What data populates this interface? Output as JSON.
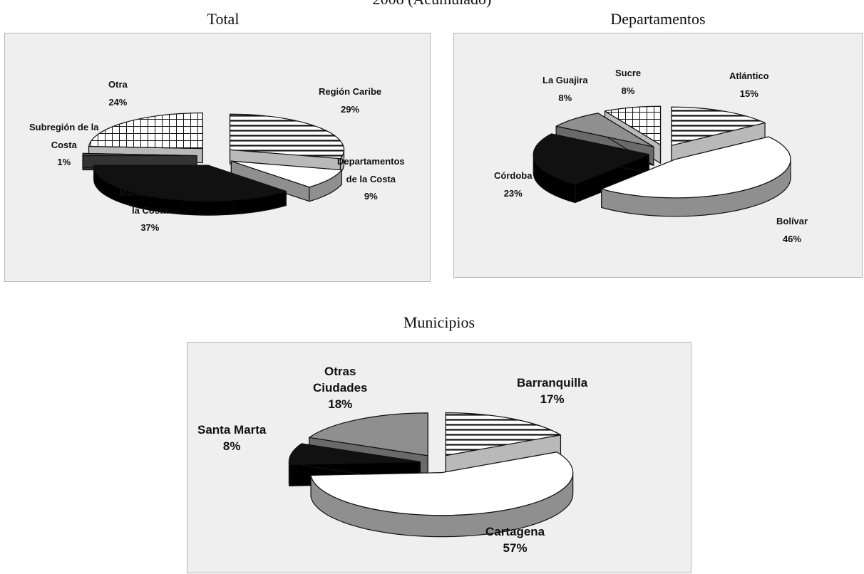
{
  "header": {
    "partial_title": "2008 (Acumulado)"
  },
  "colors": {
    "panel_bg": "#efefef",
    "dark": "#111111",
    "mid_gray": "#8f8f8f",
    "dark_gray": "#4a4a4a",
    "white": "#ffffff"
  },
  "chart_data": [
    {
      "type": "pie",
      "title": "Total",
      "style": "3d-exploded",
      "slices": [
        {
          "name": "Región Caribe",
          "label_lines": [
            "Región Caribe"
          ],
          "value": 29,
          "pct_label": "29%",
          "pattern": "horizontal-stripes"
        },
        {
          "name": "Departamentos de la Costa",
          "label_lines": [
            "Departamentos",
            "de la Costa"
          ],
          "value": 9,
          "pct_label": "9%",
          "pattern": "white"
        },
        {
          "name": "Municipios de la Costa",
          "label_lines": [
            "Municipios de",
            "la Costa"
          ],
          "value": 37,
          "pct_label": "37%",
          "pattern": "black"
        },
        {
          "name": "Subregión de la Costa",
          "label_lines": [
            "Subregión de la",
            "Costa"
          ],
          "value": 1,
          "pct_label": "1%",
          "pattern": "dark-gray"
        },
        {
          "name": "Otra",
          "label_lines": [
            "Otra"
          ],
          "value": 24,
          "pct_label": "24%",
          "pattern": "grid"
        }
      ]
    },
    {
      "type": "pie",
      "title": "Departamentos",
      "style": "3d-exploded",
      "slices": [
        {
          "name": "Atlántico",
          "label_lines": [
            "Atlántico"
          ],
          "value": 15,
          "pct_label": "15%",
          "pattern": "horizontal-stripes"
        },
        {
          "name": "Bolívar",
          "label_lines": [
            "Bolívar"
          ],
          "value": 46,
          "pct_label": "46%",
          "pattern": "white"
        },
        {
          "name": "Córdoba",
          "label_lines": [
            "Córdoba"
          ],
          "value": 23,
          "pct_label": "23%",
          "pattern": "black"
        },
        {
          "name": "La Guajira",
          "label_lines": [
            "La Guajira"
          ],
          "value": 8,
          "pct_label": "8%",
          "pattern": "mid-gray"
        },
        {
          "name": "Sucre",
          "label_lines": [
            "Sucre"
          ],
          "value": 8,
          "pct_label": "8%",
          "pattern": "grid"
        }
      ]
    },
    {
      "type": "pie",
      "title": "Municipios",
      "style": "3d-exploded",
      "slices": [
        {
          "name": "Barranquilla",
          "label_lines": [
            "Barranquilla"
          ],
          "value": 17,
          "pct_label": "17%",
          "pattern": "horizontal-stripes"
        },
        {
          "name": "Cartagena",
          "label_lines": [
            "Cartagena"
          ],
          "value": 57,
          "pct_label": "57%",
          "pattern": "white"
        },
        {
          "name": "Santa Marta",
          "label_lines": [
            "Santa Marta"
          ],
          "value": 8,
          "pct_label": "8%",
          "pattern": "black"
        },
        {
          "name": "Otras Ciudades",
          "label_lines": [
            "Otras",
            "Ciudades"
          ],
          "value": 18,
          "pct_label": "18%",
          "pattern": "mid-gray"
        }
      ]
    }
  ]
}
